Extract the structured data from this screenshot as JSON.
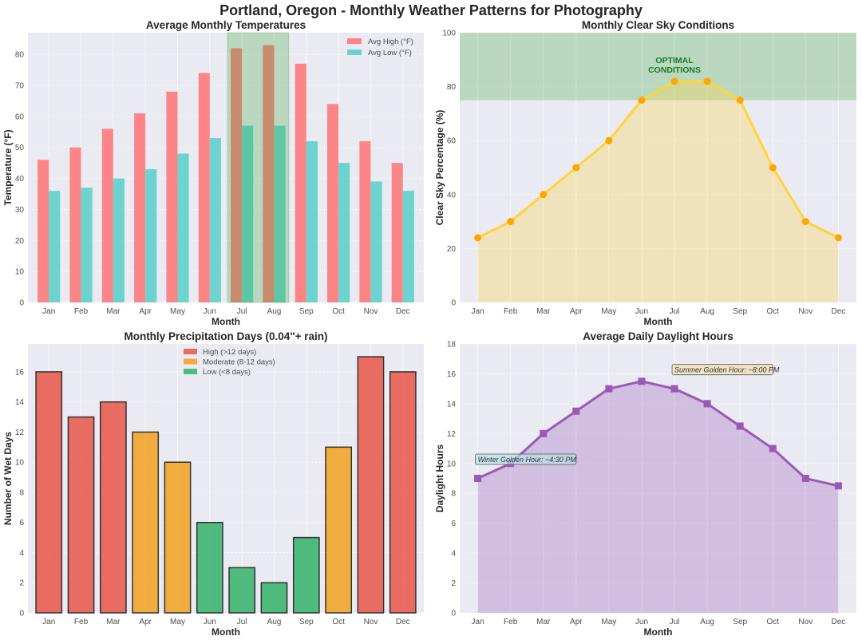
{
  "suptitle": "Portland, Oregon - Monthly Weather Patterns for Photography",
  "chart_data": [
    {
      "type": "bar",
      "title": "Average Monthly Temperatures",
      "xlabel": "Month",
      "ylabel": "Temperature (°F)",
      "ylim": [
        0,
        87
      ],
      "yticks": [
        0,
        10,
        20,
        30,
        40,
        50,
        60,
        70,
        80
      ],
      "grid": true,
      "legend_position": "top-right",
      "categories": [
        "Jan",
        "Feb",
        "Mar",
        "Apr",
        "May",
        "Jun",
        "Jul",
        "Aug",
        "Sep",
        "Oct",
        "Nov",
        "Dec"
      ],
      "series": [
        {
          "name": "Avg High (°F)",
          "color": "#ff6b6b",
          "values": [
            46,
            50,
            56,
            61,
            68,
            74,
            82,
            83,
            77,
            64,
            52,
            45
          ]
        },
        {
          "name": "Avg Low (°F)",
          "color": "#4ecdc4",
          "values": [
            36,
            37,
            40,
            43,
            48,
            53,
            57,
            57,
            52,
            45,
            39,
            36
          ]
        }
      ],
      "highlight": {
        "from": "Jul",
        "to": "Aug",
        "color": "#2ca02c"
      }
    },
    {
      "type": "area",
      "title": "Monthly Clear Sky Conditions",
      "xlabel": "Month",
      "ylabel": "Clear Sky Percentage (%)",
      "ylim": [
        0,
        100
      ],
      "yticks": [
        0,
        20,
        40,
        60,
        80,
        100
      ],
      "grid": true,
      "categories": [
        "Jan",
        "Feb",
        "Mar",
        "Apr",
        "May",
        "Jun",
        "Jul",
        "Aug",
        "Sep",
        "Oct",
        "Nov",
        "Dec"
      ],
      "series": [
        {
          "name": "Clear Sky %",
          "color": "#ffd43b",
          "marker_color": "#ffa500",
          "values": [
            24,
            30,
            40,
            50,
            60,
            75,
            82,
            82,
            75,
            50,
            30,
            24
          ]
        }
      ],
      "band": {
        "from": 75,
        "to": 100,
        "color": "#2ca02c",
        "label": [
          "OPTIMAL",
          "CONDITIONS"
        ],
        "label_x": "Jul",
        "label_y": 89
      }
    },
    {
      "type": "bar",
      "title": "Monthly Precipitation Days (0.04\"+ rain)",
      "xlabel": "Month",
      "ylabel": "Number of Wet Days",
      "ylim": [
        0,
        17.85
      ],
      "yticks": [
        0,
        2,
        4,
        6,
        8,
        10,
        12,
        14,
        16
      ],
      "grid": true,
      "legend_position": "top-center",
      "categories": [
        "Jan",
        "Feb",
        "Mar",
        "Apr",
        "May",
        "Jun",
        "Jul",
        "Aug",
        "Sep",
        "Oct",
        "Nov",
        "Dec"
      ],
      "values": [
        16,
        13,
        14,
        12,
        10,
        6,
        3,
        2,
        5,
        11,
        17,
        16
      ],
      "legend": [
        {
          "label": "High (>12 days)",
          "color": "#e74c3c"
        },
        {
          "label": "Moderate (8-12 days)",
          "color": "#f39c12"
        },
        {
          "label": "Low (<8 days)",
          "color": "#27ae60"
        }
      ]
    },
    {
      "type": "area",
      "title": "Average Daily Daylight Hours",
      "xlabel": "Month",
      "ylabel": "Daylight Hours",
      "ylim": [
        0,
        18
      ],
      "yticks": [
        0,
        2,
        4,
        6,
        8,
        10,
        12,
        14,
        16,
        18
      ],
      "grid": true,
      "categories": [
        "Jan",
        "Feb",
        "Mar",
        "Apr",
        "May",
        "Jun",
        "Jul",
        "Aug",
        "Sep",
        "Oct",
        "Nov",
        "Dec"
      ],
      "series": [
        {
          "name": "Daylight Hours",
          "color": "#9b59b6",
          "values": [
            9,
            10,
            12,
            13.5,
            15,
            15.5,
            15,
            14,
            12.5,
            11,
            9,
            8.5
          ]
        }
      ],
      "annotations": [
        {
          "text": "Winter Golden Hour: ~4:30 PM",
          "x": "Jan",
          "y": 10.2,
          "bg": "#b8e0e8"
        },
        {
          "text": "Summer Golden Hour: ~8:00 PM",
          "x": "Jul",
          "y": 16.2,
          "bg": "#f5deb3"
        }
      ]
    }
  ]
}
